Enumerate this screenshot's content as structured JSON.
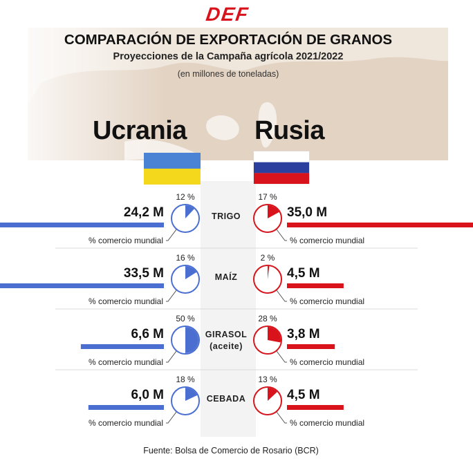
{
  "header": {
    "logo": "DEF",
    "title": "COMPARACIÓN DE EXPORTACIÓN DE GRANOS",
    "subtitle": "Proyecciones de la Campaña agrícola 2021/2022",
    "unit": "(en millones de toneladas)"
  },
  "countries": {
    "left": {
      "name": "Ucrania",
      "color": "#4a6fd0",
      "flag_colors": [
        "#4a82d4",
        "#f4d81c"
      ]
    },
    "right": {
      "name": "Rusia",
      "color": "#d8131b",
      "flag_colors": [
        "#ffffff",
        "#2b3f9e",
        "#d8131b"
      ]
    }
  },
  "share_label": "% comercio mundial",
  "chart_data": {
    "type": "bar",
    "categories": [
      "TRIGO",
      "MAÍZ",
      "GIRASOL (aceite)",
      "CEBADA"
    ],
    "category_labels": [
      [
        "TRIGO"
      ],
      [
        "MAÍZ"
      ],
      [
        "GIRASOL",
        "(aceite)"
      ],
      [
        "CEBADA"
      ]
    ],
    "series": [
      {
        "name": "Ucrania",
        "values": [
          24.2,
          33.5,
          6.6,
          6.0
        ],
        "value_labels": [
          "24,2 M",
          "33,5 M",
          "6,6 M",
          "6,0 M"
        ],
        "world_share_pct": [
          12,
          16,
          50,
          18
        ],
        "share_labels": [
          "12 %",
          "16 %",
          "50 %",
          "18 %"
        ]
      },
      {
        "name": "Rusia",
        "values": [
          35.0,
          4.5,
          3.8,
          4.5
        ],
        "value_labels": [
          "35,0 M",
          "4,5 M",
          "3,8 M",
          "4,5 M"
        ],
        "world_share_pct": [
          17,
          2,
          28,
          13
        ],
        "share_labels": [
          "17 %",
          "2 %",
          "28 %",
          "13 %"
        ]
      }
    ]
  },
  "source": "Fuente: Bolsa de Comercio de Rosario (BCR)"
}
